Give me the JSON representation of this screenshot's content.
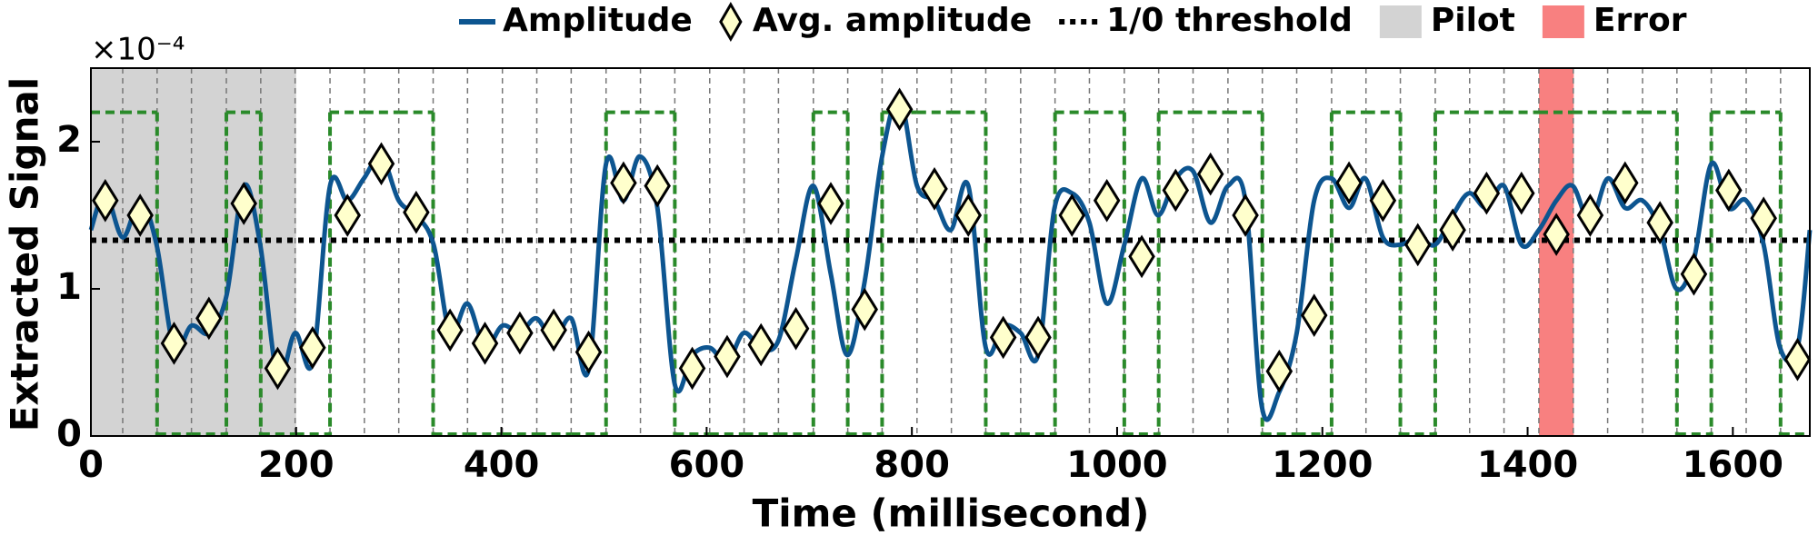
{
  "chart_data": {
    "type": "line",
    "x_label": "Time (millisecond)",
    "y_label": "Extracted Signal",
    "y_multiplier": "×10⁻⁴",
    "xlim": [
      0,
      1675
    ],
    "ylim": [
      0,
      2.5
    ],
    "xticks": [
      0,
      200,
      400,
      600,
      800,
      1000,
      1200,
      1400,
      1600
    ],
    "yticks": [
      0,
      1,
      2
    ],
    "series": [
      {
        "name": "Amplitude",
        "color": "#0d5590",
        "x": [
          0,
          14,
          31,
          48,
          64,
          81,
          98,
          115,
          132,
          149,
          165,
          182,
          199,
          216,
          233,
          250,
          266,
          283,
          300,
          317,
          334,
          350,
          367,
          384,
          401,
          418,
          434,
          451,
          468,
          485,
          502,
          519,
          535,
          552,
          569,
          586,
          603,
          620,
          636,
          653,
          670,
          687,
          704,
          721,
          737,
          754,
          771,
          788,
          805,
          822,
          838,
          855,
          872,
          889,
          906,
          923,
          939,
          956,
          973,
          990,
          1007,
          1024,
          1040,
          1057,
          1074,
          1091,
          1108,
          1125,
          1141,
          1158,
          1175,
          1192,
          1209,
          1226,
          1242,
          1259,
          1276,
          1293,
          1310,
          1327,
          1343,
          1360,
          1377,
          1394,
          1411,
          1428,
          1444,
          1461,
          1478,
          1495,
          1512,
          1529,
          1545,
          1562,
          1579,
          1596,
          1613,
          1630,
          1646,
          1663,
          1675
        ],
        "values": [
          1.4,
          1.65,
          1.35,
          1.6,
          1.3,
          0.6,
          0.75,
          0.7,
          0.95,
          1.7,
          1.3,
          0.4,
          0.7,
          0.5,
          1.7,
          1.6,
          1.75,
          1.9,
          1.6,
          1.5,
          1.3,
          0.7,
          0.9,
          0.6,
          0.75,
          0.7,
          0.8,
          0.65,
          0.8,
          0.45,
          1.85,
          1.6,
          1.9,
          1.55,
          0.35,
          0.55,
          0.6,
          0.5,
          0.7,
          0.6,
          0.65,
          1.2,
          1.7,
          1.1,
          0.55,
          1.05,
          1.9,
          2.3,
          1.7,
          1.6,
          1.4,
          1.7,
          0.6,
          0.75,
          0.7,
          0.55,
          1.55,
          1.65,
          1.45,
          0.9,
          1.3,
          1.75,
          1.5,
          1.75,
          1.8,
          1.45,
          1.7,
          1.6,
          0.2,
          0.3,
          0.7,
          1.6,
          1.75,
          1.55,
          1.75,
          1.35,
          1.3,
          1.35,
          1.3,
          1.5,
          1.65,
          1.55,
          1.7,
          1.3,
          1.4,
          1.6,
          1.7,
          1.45,
          1.75,
          1.55,
          1.6,
          1.4,
          1.0,
          1.2,
          1.85,
          1.55,
          1.6,
          1.3,
          0.6,
          0.6,
          1.4
        ]
      },
      {
        "name": "Avg. amplitude",
        "color": "#ffffcc",
        "marker": "diamond",
        "x": [
          14,
          48,
          81,
          115,
          149,
          182,
          216,
          250,
          283,
          317,
          350,
          384,
          418,
          451,
          485,
          519,
          552,
          586,
          620,
          653,
          687,
          721,
          754,
          788,
          822,
          855,
          889,
          923,
          956,
          990,
          1024,
          1057,
          1091,
          1125,
          1158,
          1192,
          1226,
          1259,
          1293,
          1327,
          1360,
          1394,
          1428,
          1461,
          1495,
          1529,
          1562,
          1596,
          1630,
          1663
        ],
        "values": [
          1.6,
          1.5,
          0.63,
          0.8,
          1.58,
          0.46,
          0.6,
          1.5,
          1.85,
          1.52,
          0.72,
          0.63,
          0.7,
          0.72,
          0.57,
          1.72,
          1.7,
          0.46,
          0.54,
          0.62,
          0.73,
          1.58,
          0.86,
          2.22,
          1.68,
          1.5,
          0.67,
          0.67,
          1.5,
          1.6,
          1.22,
          1.67,
          1.78,
          1.5,
          0.44,
          0.82,
          1.72,
          1.6,
          1.3,
          1.4,
          1.65,
          1.65,
          1.37,
          1.5,
          1.72,
          1.45,
          1.1,
          1.67,
          1.48,
          0.52
        ]
      }
    ],
    "threshold": {
      "name": "1/0 threshold",
      "value": 1.33,
      "color": "#000000"
    },
    "regions": [
      {
        "name": "Pilot",
        "color": "#d3d3d3",
        "x": [
          0,
          200
        ]
      },
      {
        "name": "Error",
        "color": "#f88080",
        "x": [
          1411,
          1445
        ]
      }
    ],
    "decoded": {
      "color": "#2a8a2a",
      "level": 2.2,
      "bits": [
        1,
        1,
        0,
        0,
        1,
        0,
        0,
        1,
        1,
        1,
        0,
        0,
        0,
        0,
        0,
        1,
        1,
        0,
        0,
        0,
        0,
        1,
        0,
        1,
        1,
        1,
        0,
        0,
        1,
        1,
        0,
        1,
        1,
        1,
        0,
        0,
        1,
        1,
        0,
        1,
        1,
        1,
        1,
        1,
        1,
        1,
        0,
        1,
        1,
        0
      ]
    }
  }
}
